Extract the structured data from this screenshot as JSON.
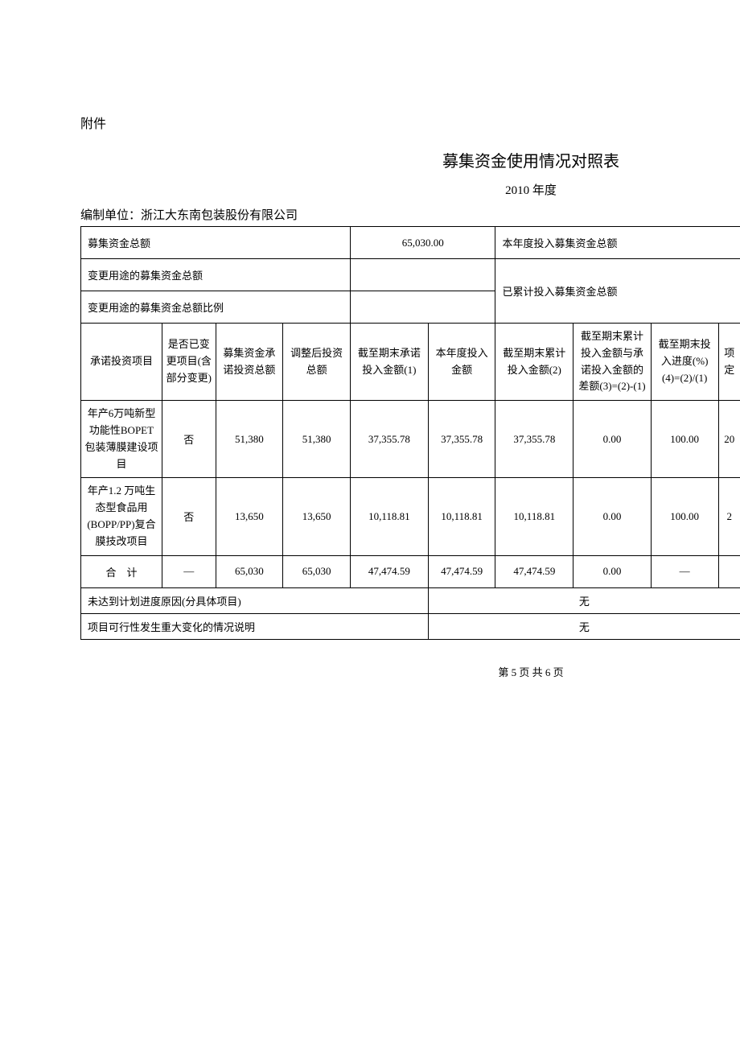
{
  "attachment_label": "附件",
  "title": "募集资金使用情况对照表",
  "year": "2010 年度",
  "unit_label": "编制单位：浙江大东南包装股份有限公司",
  "header_rows": {
    "row1": {
      "label1": "募集资金总额",
      "value1": "65,030.00",
      "label2": "本年度投入募集资金总额"
    },
    "row2": {
      "label1": "变更用途的募集资金总额",
      "label2_merged": "已累计投入募集资金总额"
    },
    "row3": {
      "label1": "变更用途的募集资金总额比例"
    }
  },
  "table": {
    "columns": [
      "承诺投资项目",
      "是否已变更项目(含部分变更)",
      "募集资金承诺投资总额",
      "调整后投资总额",
      "截至期末承诺投入金额(1)",
      "本年度投入金额",
      "截至期末累计投入金额(2)",
      "截至期末累计投入金额与承诺投入金额的差额(3)=(2)-(1)",
      "截至期末投入进度(%)(4)=(2)/(1)",
      "项定"
    ],
    "rows": [
      {
        "project": "年产6万吨新型功能性BOPET包装薄膜建设项目",
        "changed": "否",
        "committed": "51,380",
        "adjusted": "51,380",
        "end_committed": "37,355.78",
        "this_year": "37,355.78",
        "cumulative": "37,355.78",
        "difference": "0.00",
        "progress": "100.00",
        "last": "20"
      },
      {
        "project": "年产1.2 万吨生态型食品用(BOPP/PP)复合膜技改项目",
        "changed": "否",
        "committed": "13,650",
        "adjusted": "13,650",
        "end_committed": "10,118.81",
        "this_year": "10,118.81",
        "cumulative": "10,118.81",
        "difference": "0.00",
        "progress": "100.00",
        "last": "2"
      }
    ],
    "total_row": {
      "label": "合　计",
      "changed": "—",
      "committed": "65,030",
      "adjusted": "65,030",
      "end_committed": "47,474.59",
      "this_year": "47,474.59",
      "cumulative": "47,474.59",
      "difference": "0.00",
      "progress": "—",
      "last": ""
    }
  },
  "footer_rows": {
    "row1": {
      "label": "未达到计划进度原因(分具体项目)",
      "value": "无"
    },
    "row2": {
      "label": "项目可行性发生重大变化的情况说明",
      "value": "无"
    }
  },
  "page_footer": "第 5 页 共 6 页",
  "styling": {
    "background_color": "#ffffff",
    "text_color": "#000000",
    "border_color": "#000000",
    "font_family": "SimSun",
    "title_fontsize": 20,
    "body_fontsize": 14,
    "table_fontsize": 13
  }
}
